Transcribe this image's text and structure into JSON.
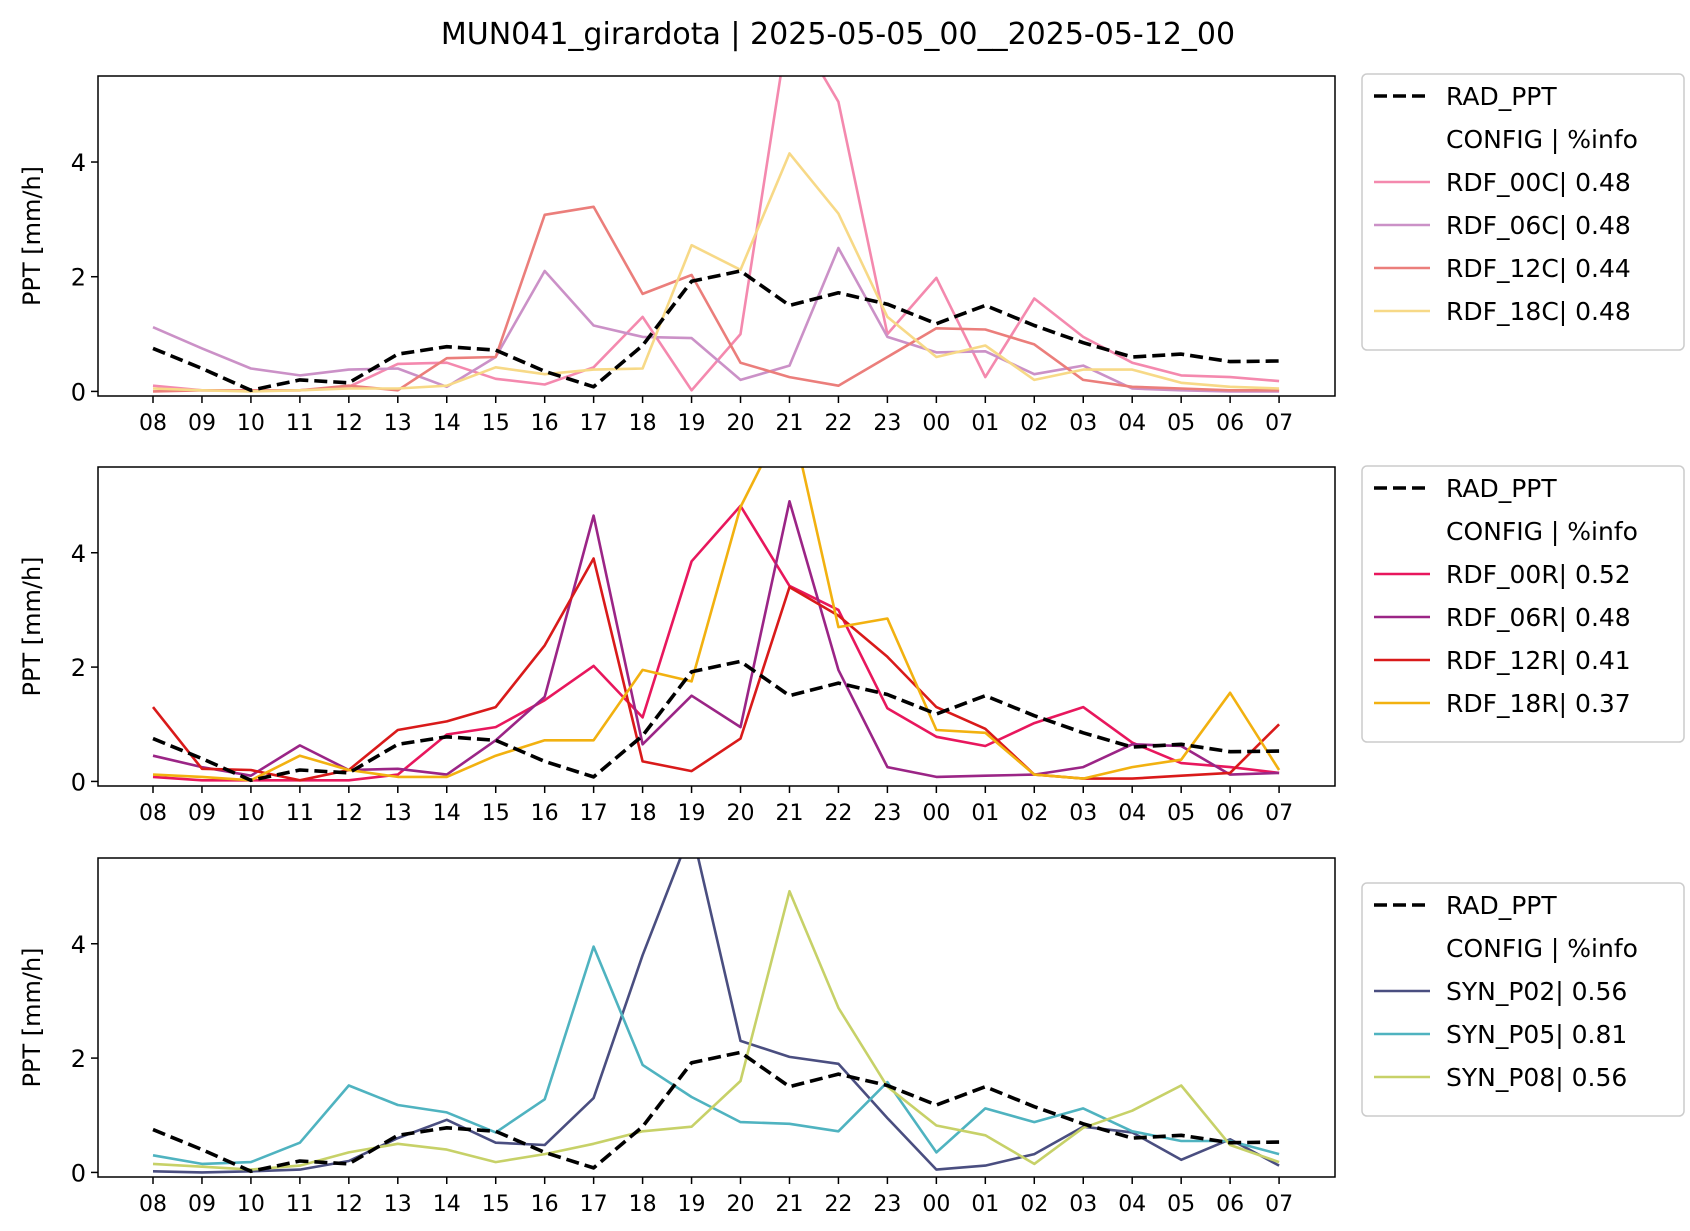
{
  "title": "MUN041_girardota | 2025-05-05_00__2025-05-12_00",
  "chart_data": [
    {
      "type": "line",
      "ylabel": "PPT [mm/h]",
      "ylim": [
        -0.08,
        5.5
      ],
      "yticks": [
        0,
        2,
        4
      ],
      "categories": [
        "08",
        "09",
        "10",
        "11",
        "12",
        "13",
        "14",
        "15",
        "16",
        "17",
        "18",
        "19",
        "20",
        "21",
        "22",
        "23",
        "00",
        "01",
        "02",
        "03",
        "04",
        "05",
        "06",
        "07"
      ],
      "legend_header": "CONFIG  | %info",
      "legend_location": "outside-right-top",
      "series": [
        {
          "name": "RAD_PPT",
          "color": "#000000",
          "dashed": true,
          "values": [
            0.75,
            0.4,
            0.02,
            0.2,
            0.15,
            0.65,
            0.78,
            0.72,
            0.35,
            0.08,
            0.8,
            1.92,
            2.1,
            1.5,
            1.72,
            1.52,
            1.18,
            1.5,
            1.15,
            0.85,
            0.6,
            0.65,
            0.52,
            0.53
          ]
        },
        {
          "name": "RDF_00C| 0.48",
          "color": "#f489ae",
          "dashed": false,
          "values": [
            0.1,
            0.02,
            0.02,
            0.02,
            0.08,
            0.48,
            0.5,
            0.22,
            0.12,
            0.42,
            1.3,
            0.02,
            1.0,
            6.5,
            5.05,
            1.0,
            1.98,
            0.25,
            1.62,
            0.95,
            0.5,
            0.28,
            0.25,
            0.18
          ]
        },
        {
          "name": "RDF_06C| 0.48",
          "color": "#cb91c7",
          "dashed": false,
          "values": [
            1.12,
            0.75,
            0.4,
            0.28,
            0.38,
            0.4,
            0.08,
            0.6,
            2.1,
            1.15,
            0.95,
            0.93,
            0.2,
            0.45,
            2.5,
            0.95,
            0.68,
            0.7,
            0.3,
            0.45,
            0.05,
            0.02,
            0.0,
            0.0
          ]
        },
        {
          "name": "RDF_12C| 0.44",
          "color": "#eb7e7b",
          "dashed": false,
          "values": [
            0.0,
            0.02,
            0.02,
            0.02,
            0.1,
            0.02,
            0.58,
            0.6,
            3.08,
            3.22,
            1.7,
            2.03,
            0.5,
            0.25,
            0.1,
            0.6,
            1.1,
            1.08,
            0.82,
            0.2,
            0.08,
            0.05,
            0.02,
            0.02
          ]
        },
        {
          "name": "RDF_18C| 0.48",
          "color": "#f7d987",
          "dashed": false,
          "values": [
            0.05,
            0.02,
            0.0,
            0.02,
            0.05,
            0.05,
            0.1,
            0.42,
            0.3,
            0.38,
            0.4,
            2.55,
            2.12,
            4.15,
            3.1,
            1.3,
            0.6,
            0.8,
            0.2,
            0.38,
            0.38,
            0.15,
            0.08,
            0.05
          ]
        }
      ]
    },
    {
      "type": "line",
      "ylabel": "PPT [mm/h]",
      "ylim": [
        -0.08,
        5.5
      ],
      "yticks": [
        0,
        2,
        4
      ],
      "categories": [
        "08",
        "09",
        "10",
        "11",
        "12",
        "13",
        "14",
        "15",
        "16",
        "17",
        "18",
        "19",
        "20",
        "21",
        "22",
        "23",
        "00",
        "01",
        "02",
        "03",
        "04",
        "05",
        "06",
        "07"
      ],
      "legend_header": "CONFIG  | %info",
      "legend_location": "outside-right-top",
      "series": [
        {
          "name": "RAD_PPT",
          "color": "#000000",
          "dashed": true,
          "values": [
            0.75,
            0.4,
            0.02,
            0.2,
            0.15,
            0.65,
            0.78,
            0.72,
            0.35,
            0.08,
            0.8,
            1.92,
            2.1,
            1.5,
            1.72,
            1.52,
            1.18,
            1.5,
            1.15,
            0.85,
            0.6,
            0.65,
            0.52,
            0.53
          ]
        },
        {
          "name": "RDF_00R| 0.52",
          "color": "#e8175d",
          "dashed": false,
          "values": [
            0.08,
            0.02,
            0.02,
            0.02,
            0.02,
            0.12,
            0.82,
            0.95,
            1.42,
            2.02,
            1.12,
            3.85,
            4.82,
            3.42,
            3.0,
            1.28,
            0.78,
            0.62,
            1.02,
            1.3,
            0.68,
            0.32,
            0.25,
            0.15
          ]
        },
        {
          "name": "RDF_06R| 0.48",
          "color": "#9b2586",
          "dashed": false,
          "values": [
            0.45,
            0.25,
            0.1,
            0.63,
            0.2,
            0.22,
            0.12,
            0.72,
            1.48,
            4.65,
            0.65,
            1.5,
            0.95,
            4.9,
            1.95,
            0.25,
            0.08,
            0.1,
            0.12,
            0.25,
            0.65,
            0.62,
            0.12,
            0.15
          ]
        },
        {
          "name": "RDF_12R| 0.41",
          "color": "#d91a1a",
          "dashed": false,
          "values": [
            1.3,
            0.22,
            0.2,
            0.02,
            0.2,
            0.9,
            1.05,
            1.3,
            2.38,
            3.9,
            0.35,
            0.18,
            0.75,
            3.4,
            2.9,
            2.18,
            1.3,
            0.92,
            0.12,
            0.05,
            0.05,
            0.1,
            0.15,
            1.0
          ]
        },
        {
          "name": "RDF_18R| 0.37",
          "color": "#f2b110",
          "dashed": false,
          "values": [
            0.12,
            0.08,
            0.02,
            0.45,
            0.2,
            0.08,
            0.08,
            0.45,
            0.72,
            0.72,
            1.95,
            1.75,
            4.8,
            6.5,
            2.7,
            2.85,
            0.9,
            0.85,
            0.12,
            0.05,
            0.25,
            0.38,
            1.55,
            0.2
          ]
        }
      ]
    },
    {
      "type": "line",
      "ylabel": "PPT [mm/h]",
      "ylim": [
        -0.08,
        5.5
      ],
      "yticks": [
        0,
        2,
        4
      ],
      "categories": [
        "08",
        "09",
        "10",
        "11",
        "12",
        "13",
        "14",
        "15",
        "16",
        "17",
        "18",
        "19",
        "20",
        "21",
        "22",
        "23",
        "00",
        "01",
        "02",
        "03",
        "04",
        "05",
        "06",
        "07"
      ],
      "legend_header": "CONFIG  | %info",
      "legend_location": "outside-right-center",
      "series": [
        {
          "name": "RAD_PPT",
          "color": "#000000",
          "dashed": true,
          "values": [
            0.75,
            0.4,
            0.02,
            0.2,
            0.15,
            0.65,
            0.78,
            0.72,
            0.35,
            0.08,
            0.8,
            1.92,
            2.1,
            1.5,
            1.72,
            1.52,
            1.18,
            1.5,
            1.15,
            0.85,
            0.6,
            0.65,
            0.52,
            0.53
          ]
        },
        {
          "name": "SYN_P02| 0.56",
          "color": "#4a4e80",
          "dashed": false,
          "values": [
            0.02,
            0.0,
            0.02,
            0.05,
            0.2,
            0.6,
            0.92,
            0.52,
            0.48,
            1.3,
            3.8,
            6.0,
            2.3,
            2.02,
            1.9,
            0.95,
            0.05,
            0.12,
            0.32,
            0.8,
            0.7,
            0.22,
            0.58,
            0.12
          ]
        },
        {
          "name": "SYN_P05| 0.81",
          "color": "#4fb3c0",
          "dashed": false,
          "values": [
            0.3,
            0.15,
            0.18,
            0.52,
            1.52,
            1.18,
            1.05,
            0.7,
            1.28,
            3.95,
            1.88,
            1.32,
            0.88,
            0.85,
            0.72,
            1.58,
            0.35,
            1.12,
            0.88,
            1.12,
            0.72,
            0.55,
            0.55,
            0.32
          ]
        },
        {
          "name": "SYN_P08| 0.56",
          "color": "#c7d168",
          "dashed": false,
          "values": [
            0.15,
            0.1,
            0.05,
            0.12,
            0.35,
            0.5,
            0.4,
            0.18,
            0.32,
            0.5,
            0.72,
            0.8,
            1.6,
            4.92,
            2.88,
            1.5,
            0.82,
            0.65,
            0.15,
            0.78,
            1.08,
            1.52,
            0.48,
            0.18
          ]
        }
      ]
    }
  ]
}
